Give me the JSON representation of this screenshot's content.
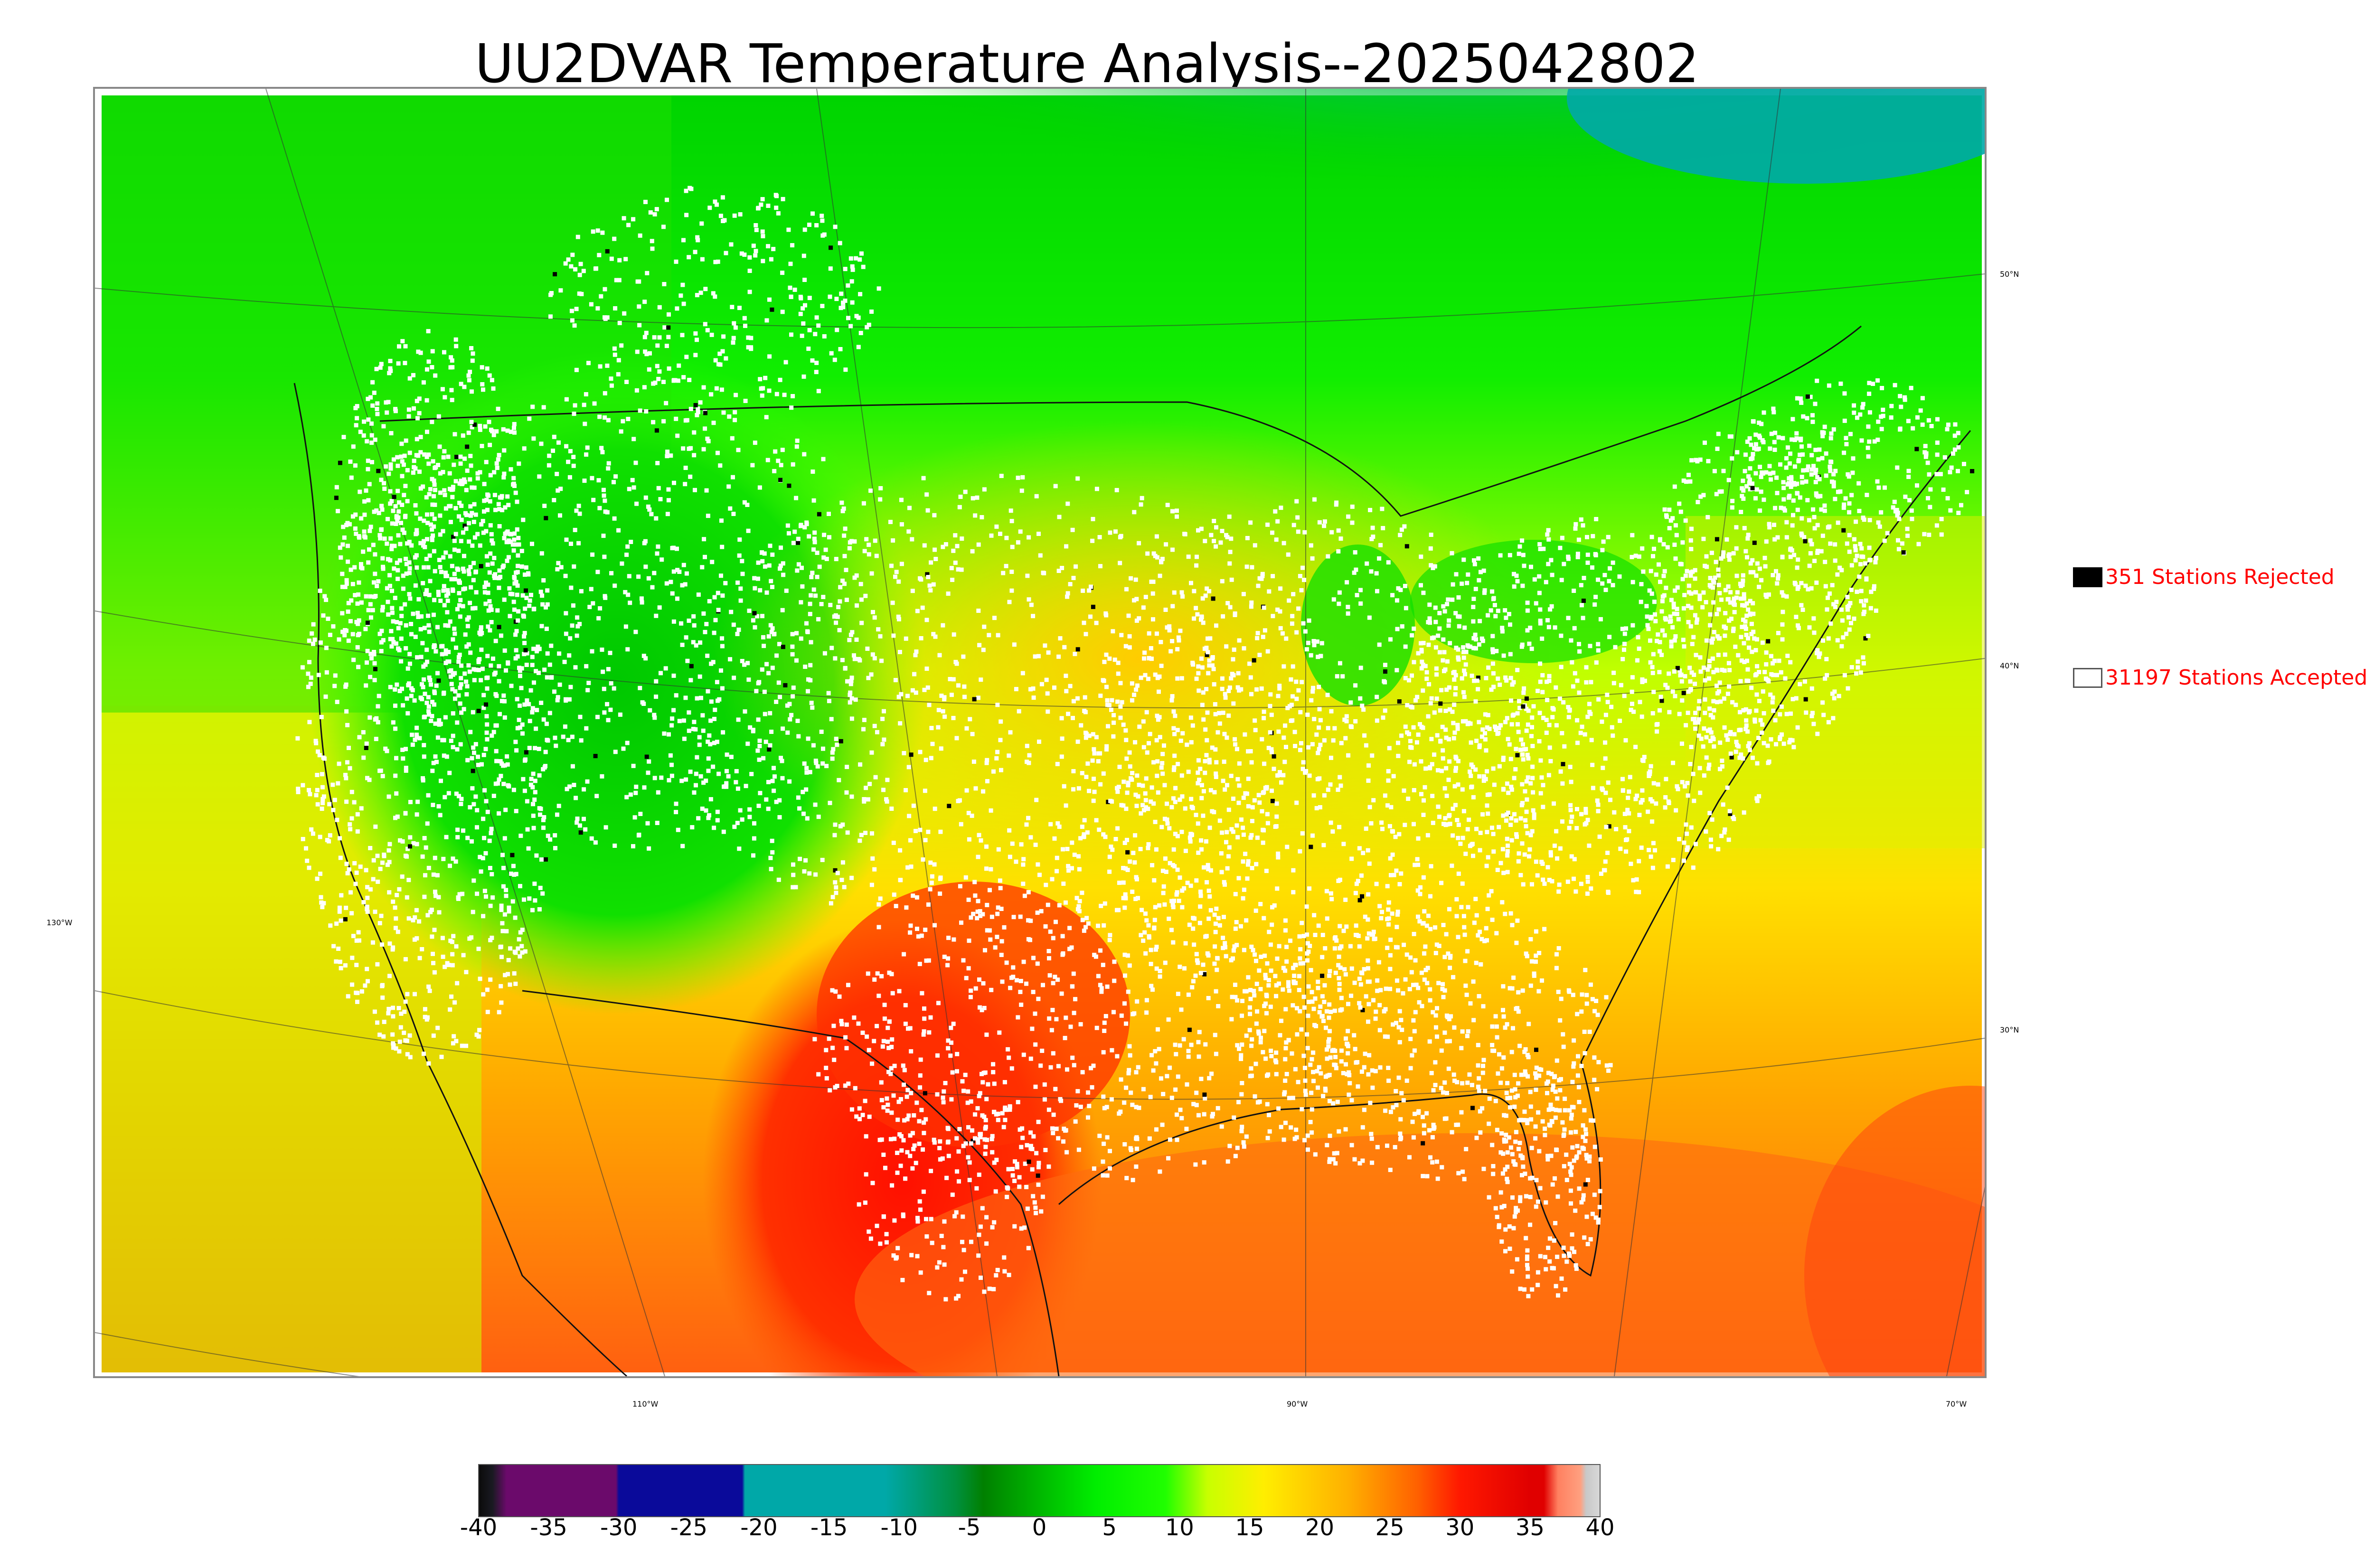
{
  "title": "UU2DVAR Temperature Analysis--2025042802",
  "legend": {
    "rejected_label": "351 Stations Rejected",
    "accepted_label": "31197 Stations Accepted",
    "rejected_color": "#000000",
    "accepted_color": "#ffffff",
    "label_color": "#ff0000"
  },
  "graticule": {
    "lat_labels": [
      "50°N",
      "40°N",
      "30°N"
    ],
    "lon_labels": [
      "130°W",
      "110°W",
      "90°W",
      "70°W"
    ]
  },
  "colorbar": {
    "ticks": [
      "-40",
      "-35",
      "-30",
      "-25",
      "-20",
      "-15",
      "-10",
      "-5",
      "0",
      "5",
      "10",
      "15",
      "20",
      "25",
      "30",
      "35",
      "40"
    ],
    "range": [
      -40,
      40
    ],
    "stops": [
      {
        "v": -40,
        "c": "#0a0a0a"
      },
      {
        "v": -39,
        "c": "#1a1a22"
      },
      {
        "v": -38,
        "c": "#6b0a6b"
      },
      {
        "v": -30.2,
        "c": "#6b0a6b"
      },
      {
        "v": -30,
        "c": "#0a0a9a"
      },
      {
        "v": -21.2,
        "c": "#0a0a9a"
      },
      {
        "v": -21,
        "c": "#00a8a8"
      },
      {
        "v": -11,
        "c": "#00a8a8"
      },
      {
        "v": -6,
        "c": "#009040"
      },
      {
        "v": -4,
        "c": "#008000"
      },
      {
        "v": 4,
        "c": "#00ee00"
      },
      {
        "v": 9,
        "c": "#20ff00"
      },
      {
        "v": 12,
        "c": "#c8ff00"
      },
      {
        "v": 16,
        "c": "#ffee00"
      },
      {
        "v": 22,
        "c": "#ffb000"
      },
      {
        "v": 27,
        "c": "#ff6000"
      },
      {
        "v": 30,
        "c": "#ff1800"
      },
      {
        "v": 35,
        "c": "#e00000"
      },
      {
        "v": 36,
        "c": "#e00000"
      },
      {
        "v": 37,
        "c": "#ff8060"
      },
      {
        "v": 38.6,
        "c": "#ffa080"
      },
      {
        "v": 39,
        "c": "#c8c8c8"
      },
      {
        "v": 40,
        "c": "#d8d8d8"
      }
    ]
  },
  "map_colors": {
    "cold_north": "#00a8a0",
    "boreal": "#00cc00",
    "mild": "#22ff00",
    "cool_yellow": "#d8ff00",
    "warm_yellow": "#ffe000",
    "orange": "#ffa000",
    "hot_red": "#ff2000",
    "sea_warm": "#ff7a10",
    "station_accepted": "#ffffff",
    "station_rejected": "#000000"
  }
}
